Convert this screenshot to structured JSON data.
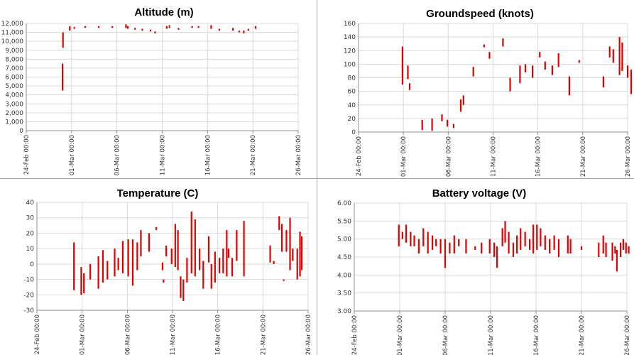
{
  "colors": {
    "series": "#e00000",
    "grid": "#d9d9d9",
    "axis": "#8c8c8c"
  },
  "x_tick_labels": [
    "24-Feb 00:00",
    "01-Mar 00:00",
    "06-Mar 00:00",
    "11-Mar 00:00",
    "16-Mar 00:00",
    "21-Mar 00:00",
    "26-Mar 00:00"
  ],
  "chart_data": [
    {
      "type": "scatter",
      "title": "Altitude (m)",
      "xlim": [
        "24-Feb 00:00",
        "26-Mar 00:00"
      ],
      "ylim": [
        0,
        12000
      ],
      "yticks": [
        0,
        1000,
        2000,
        3000,
        4000,
        5000,
        6000,
        7000,
        8000,
        9000,
        10000,
        11000,
        12000
      ],
      "ytick_labels": [
        "0",
        "1,000",
        "2,000",
        "3,000",
        "4,000",
        "5,000",
        "6,000",
        "7,000",
        "8,000",
        "9,000",
        "10,000",
        "11,000",
        "12,000"
      ],
      "grid": true,
      "segments": [
        {
          "day": 4.0,
          "low": 4500,
          "high": 7500
        },
        {
          "day": 4.05,
          "low": 9300,
          "high": 11000
        },
        {
          "day": 4.8,
          "low": 11200,
          "high": 11700
        },
        {
          "day": 5.3,
          "low": 11400,
          "high": 11600
        },
        {
          "day": 6.5,
          "low": 11500,
          "high": 11700
        },
        {
          "day": 8.0,
          "low": 11500,
          "high": 11700
        },
        {
          "day": 9.5,
          "low": 11500,
          "high": 11700
        },
        {
          "day": 11.0,
          "low": 11500,
          "high": 11900
        },
        {
          "day": 11.2,
          "low": 11400,
          "high": 11700
        },
        {
          "day": 12.0,
          "low": 11300,
          "high": 11500
        },
        {
          "day": 12.8,
          "low": 11200,
          "high": 11400
        },
        {
          "day": 13.7,
          "low": 11100,
          "high": 11300
        },
        {
          "day": 14.2,
          "low": 10900,
          "high": 11100
        },
        {
          "day": 15.5,
          "low": 11400,
          "high": 11700
        },
        {
          "day": 15.8,
          "low": 11500,
          "high": 11800
        },
        {
          "day": 16.8,
          "low": 11300,
          "high": 11500
        },
        {
          "day": 18.3,
          "low": 11500,
          "high": 11700
        },
        {
          "day": 19.0,
          "low": 11500,
          "high": 11700
        },
        {
          "day": 20.4,
          "low": 11400,
          "high": 11800
        },
        {
          "day": 21.3,
          "low": 11200,
          "high": 11400
        },
        {
          "day": 22.8,
          "low": 11200,
          "high": 11500
        },
        {
          "day": 23.5,
          "low": 11000,
          "high": 11200
        },
        {
          "day": 24.0,
          "low": 10900,
          "high": 11200
        },
        {
          "day": 24.5,
          "low": 11200,
          "high": 11400
        },
        {
          "day": 25.3,
          "low": 11400,
          "high": 11700
        }
      ]
    },
    {
      "type": "scatter",
      "title": "Groundspeed (knots)",
      "xlim": [
        "24-Feb 00:00",
        "26-Mar 00:00"
      ],
      "ylim": [
        0,
        160
      ],
      "yticks": [
        0,
        20,
        40,
        60,
        80,
        100,
        120,
        140,
        160
      ],
      "ytick_labels": [
        "0",
        "20",
        "40",
        "60",
        "80",
        "100",
        "120",
        "140",
        "160"
      ],
      "grid": true,
      "segments": [
        {
          "day": 4.9,
          "low": 70,
          "high": 126
        },
        {
          "day": 5.5,
          "low": 78,
          "high": 98
        },
        {
          "day": 5.7,
          "low": 62,
          "high": 72
        },
        {
          "day": 7.1,
          "low": 3,
          "high": 18
        },
        {
          "day": 8.2,
          "low": 2,
          "high": 20
        },
        {
          "day": 9.3,
          "low": 16,
          "high": 26
        },
        {
          "day": 9.9,
          "low": 8,
          "high": 18
        },
        {
          "day": 10.6,
          "low": 6,
          "high": 12
        },
        {
          "day": 11.4,
          "low": 30,
          "high": 48
        },
        {
          "day": 11.7,
          "low": 40,
          "high": 54
        },
        {
          "day": 12.8,
          "low": 82,
          "high": 96
        },
        {
          "day": 14.0,
          "low": 126,
          "high": 128
        },
        {
          "day": 14.6,
          "low": 108,
          "high": 118
        },
        {
          "day": 16.1,
          "low": 126,
          "high": 138
        },
        {
          "day": 16.9,
          "low": 60,
          "high": 80
        },
        {
          "day": 18.0,
          "low": 72,
          "high": 98
        },
        {
          "day": 18.6,
          "low": 88,
          "high": 100
        },
        {
          "day": 19.4,
          "low": 80,
          "high": 98
        },
        {
          "day": 20.2,
          "low": 110,
          "high": 118
        },
        {
          "day": 20.8,
          "low": 92,
          "high": 104
        },
        {
          "day": 21.6,
          "low": 84,
          "high": 98
        },
        {
          "day": 22.3,
          "low": 96,
          "high": 116
        },
        {
          "day": 23.5,
          "low": 54,
          "high": 82
        },
        {
          "day": 24.6,
          "low": 102,
          "high": 106
        },
        {
          "day": 27.3,
          "low": 66,
          "high": 82
        },
        {
          "day": 28.0,
          "low": 110,
          "high": 126
        },
        {
          "day": 28.4,
          "low": 102,
          "high": 122
        },
        {
          "day": 29.1,
          "low": 84,
          "high": 140
        },
        {
          "day": 29.4,
          "low": 90,
          "high": 132
        },
        {
          "day": 30.0,
          "low": 80,
          "high": 98
        },
        {
          "day": 30.4,
          "low": 56,
          "high": 92
        }
      ]
    },
    {
      "type": "scatter",
      "title": "Temperature (C)",
      "xlim": [
        "24-Feb 00:00",
        "26-Mar 00:00"
      ],
      "ylim": [
        -30,
        40
      ],
      "yticks": [
        -30,
        -20,
        -10,
        0,
        10,
        20,
        30,
        40
      ],
      "ytick_labels": [
        "-30",
        "-20",
        "-10",
        "0",
        "10",
        "20",
        "30",
        "40"
      ],
      "grid": true,
      "segments": [
        {
          "day": 4.1,
          "low": -17,
          "high": 14
        },
        {
          "day": 4.9,
          "low": -20,
          "high": -2
        },
        {
          "day": 5.2,
          "low": -19,
          "high": -6
        },
        {
          "day": 5.9,
          "low": -10,
          "high": 0
        },
        {
          "day": 6.8,
          "low": -16,
          "high": 5
        },
        {
          "day": 7.3,
          "low": -12,
          "high": 9
        },
        {
          "day": 7.8,
          "low": -10,
          "high": 2
        },
        {
          "day": 8.6,
          "low": -8,
          "high": 10
        },
        {
          "day": 9.0,
          "low": -4,
          "high": 4
        },
        {
          "day": 9.5,
          "low": -6,
          "high": 15
        },
        {
          "day": 10.1,
          "low": -8,
          "high": 16
        },
        {
          "day": 10.6,
          "low": -14,
          "high": 16
        },
        {
          "day": 11.1,
          "low": -4,
          "high": 14
        },
        {
          "day": 11.5,
          "low": 5,
          "high": 22
        },
        {
          "day": 12.4,
          "low": 8,
          "high": 20
        },
        {
          "day": 13.2,
          "low": 22,
          "high": 24
        },
        {
          "day": 13.9,
          "low": -4,
          "high": 1
        },
        {
          "day": 14.0,
          "low": -12,
          "high": -10
        },
        {
          "day": 14.3,
          "low": 5,
          "high": 12
        },
        {
          "day": 14.9,
          "low": 0,
          "high": 10
        },
        {
          "day": 15.3,
          "low": -2,
          "high": 26
        },
        {
          "day": 15.6,
          "low": -4,
          "high": 22
        },
        {
          "day": 15.9,
          "low": -22,
          "high": -8
        },
        {
          "day": 16.2,
          "low": -24,
          "high": -10
        },
        {
          "day": 16.6,
          "low": -12,
          "high": 4
        },
        {
          "day": 17.1,
          "low": -6,
          "high": 34
        },
        {
          "day": 17.5,
          "low": -8,
          "high": 29
        },
        {
          "day": 18.0,
          "low": -4,
          "high": 10
        },
        {
          "day": 18.4,
          "low": -16,
          "high": 2
        },
        {
          "day": 19.0,
          "low": 1,
          "high": 18
        },
        {
          "day": 19.3,
          "low": -16,
          "high": 0
        },
        {
          "day": 19.7,
          "low": -12,
          "high": 8
        },
        {
          "day": 20.2,
          "low": -6,
          "high": 4
        },
        {
          "day": 20.6,
          "low": -6,
          "high": 10
        },
        {
          "day": 21.0,
          "low": -8,
          "high": 22
        },
        {
          "day": 21.2,
          "low": 4,
          "high": 10
        },
        {
          "day": 21.6,
          "low": -8,
          "high": 4
        },
        {
          "day": 22.1,
          "low": 2,
          "high": 22
        },
        {
          "day": 22.9,
          "low": -8,
          "high": 28
        },
        {
          "day": 25.8,
          "low": 1,
          "high": 12
        },
        {
          "day": 26.2,
          "low": 0,
          "high": 2
        },
        {
          "day": 26.8,
          "low": 22,
          "high": 31
        },
        {
          "day": 27.1,
          "low": 8,
          "high": 26
        },
        {
          "day": 27.3,
          "low": -11,
          "high": -10
        },
        {
          "day": 27.6,
          "low": 8,
          "high": 22
        },
        {
          "day": 28.0,
          "low": -4,
          "high": 30
        },
        {
          "day": 28.3,
          "low": 2,
          "high": 10
        },
        {
          "day": 28.8,
          "low": -10,
          "high": 10
        },
        {
          "day": 29.1,
          "low": -8,
          "high": 21
        },
        {
          "day": 29.3,
          "low": -4,
          "high": 18
        }
      ]
    },
    {
      "type": "scatter",
      "title": "Battery voltage (V)",
      "xlim": [
        "24-Feb 00:00",
        "26-Mar 00:00"
      ],
      "ylim": [
        3.0,
        6.0
      ],
      "yticks": [
        3.0,
        3.5,
        4.0,
        4.5,
        5.0,
        5.5,
        6.0
      ],
      "ytick_labels": [
        "3.00",
        "3.50",
        "4.00",
        "4.50",
        "5.00",
        "5.50",
        "6.00"
      ],
      "grid": true,
      "segments": [
        {
          "day": 4.9,
          "low": 4.8,
          "high": 5.4
        },
        {
          "day": 5.3,
          "low": 5.0,
          "high": 5.2
        },
        {
          "day": 5.7,
          "low": 4.9,
          "high": 5.4
        },
        {
          "day": 6.2,
          "low": 4.8,
          "high": 5.2
        },
        {
          "day": 6.6,
          "low": 4.8,
          "high": 5.1
        },
        {
          "day": 7.1,
          "low": 4.6,
          "high": 5.0
        },
        {
          "day": 7.6,
          "low": 4.8,
          "high": 5.3
        },
        {
          "day": 8.1,
          "low": 4.6,
          "high": 5.2
        },
        {
          "day": 8.6,
          "low": 4.7,
          "high": 5.1
        },
        {
          "day": 9.0,
          "low": 4.8,
          "high": 5.0
        },
        {
          "day": 9.5,
          "low": 4.6,
          "high": 5.0
        },
        {
          "day": 10.0,
          "low": 4.2,
          "high": 5.0
        },
        {
          "day": 10.5,
          "low": 4.6,
          "high": 4.9
        },
        {
          "day": 11.0,
          "low": 4.6,
          "high": 5.1
        },
        {
          "day": 11.5,
          "low": 4.8,
          "high": 5.0
        },
        {
          "day": 12.3,
          "low": 4.6,
          "high": 5.0
        },
        {
          "day": 13.3,
          "low": 4.7,
          "high": 4.8
        },
        {
          "day": 14.0,
          "low": 4.6,
          "high": 4.9
        },
        {
          "day": 14.9,
          "low": 4.6,
          "high": 5.0
        },
        {
          "day": 15.4,
          "low": 4.5,
          "high": 4.9
        },
        {
          "day": 15.7,
          "low": 4.2,
          "high": 4.8
        },
        {
          "day": 16.3,
          "low": 4.8,
          "high": 5.3
        },
        {
          "day": 16.6,
          "low": 4.9,
          "high": 5.5
        },
        {
          "day": 17.0,
          "low": 4.6,
          "high": 5.2
        },
        {
          "day": 17.5,
          "low": 4.5,
          "high": 4.9
        },
        {
          "day": 17.9,
          "low": 4.6,
          "high": 5.1
        },
        {
          "day": 18.3,
          "low": 4.7,
          "high": 5.3
        },
        {
          "day": 18.8,
          "low": 4.8,
          "high": 5.2
        },
        {
          "day": 19.3,
          "low": 4.7,
          "high": 5.0
        },
        {
          "day": 19.7,
          "low": 4.6,
          "high": 5.4
        },
        {
          "day": 20.1,
          "low": 4.7,
          "high": 5.4
        },
        {
          "day": 20.5,
          "low": 4.8,
          "high": 5.3
        },
        {
          "day": 21.0,
          "low": 4.7,
          "high": 5.1
        },
        {
          "day": 21.5,
          "low": 4.6,
          "high": 5.0
        },
        {
          "day": 22.0,
          "low": 4.7,
          "high": 5.1
        },
        {
          "day": 22.5,
          "low": 4.5,
          "high": 5.0
        },
        {
          "day": 23.5,
          "low": 4.6,
          "high": 5.1
        },
        {
          "day": 23.8,
          "low": 4.6,
          "high": 5.0
        },
        {
          "day": 25.0,
          "low": 4.7,
          "high": 4.8
        },
        {
          "day": 26.9,
          "low": 4.5,
          "high": 4.9
        },
        {
          "day": 27.4,
          "low": 4.6,
          "high": 5.1
        },
        {
          "day": 27.7,
          "low": 4.5,
          "high": 4.9
        },
        {
          "day": 28.4,
          "low": 4.4,
          "high": 4.9
        },
        {
          "day": 28.7,
          "low": 4.6,
          "high": 4.8
        },
        {
          "day": 28.9,
          "low": 4.1,
          "high": 4.7
        },
        {
          "day": 29.3,
          "low": 4.5,
          "high": 4.9
        },
        {
          "day": 29.6,
          "low": 4.7,
          "high": 5.0
        },
        {
          "day": 29.9,
          "low": 4.6,
          "high": 4.9
        },
        {
          "day": 30.2,
          "low": 4.6,
          "high": 4.8
        }
      ]
    }
  ]
}
